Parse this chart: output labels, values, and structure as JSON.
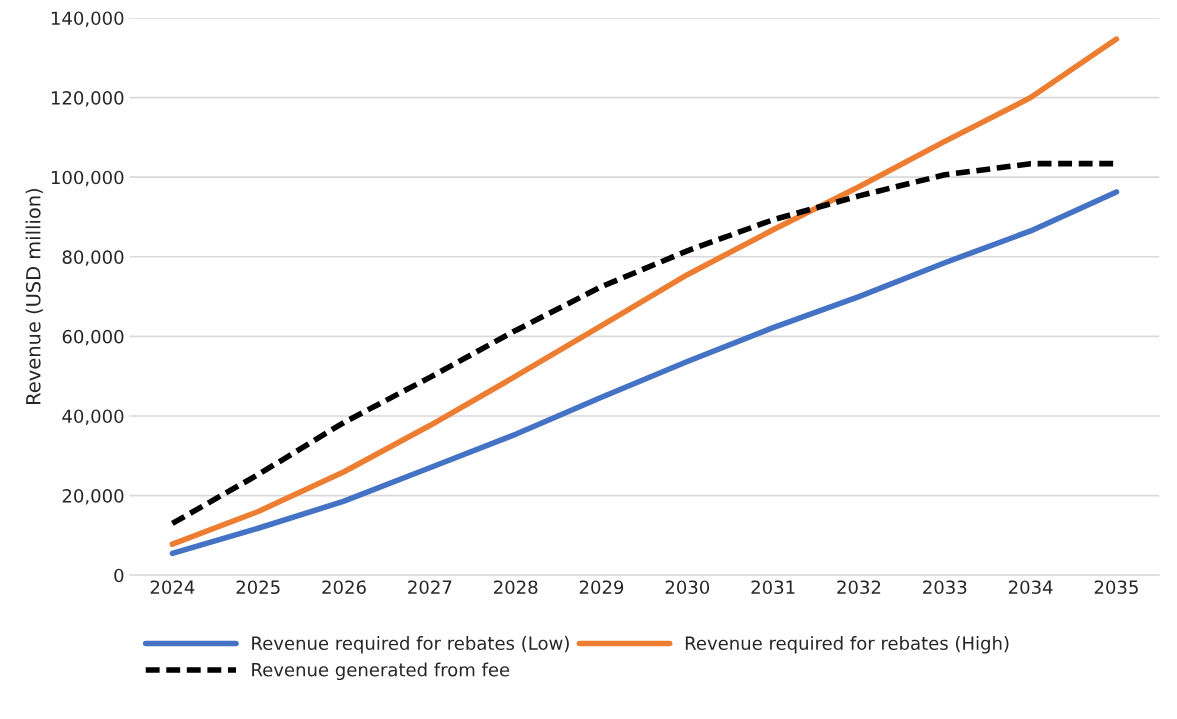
{
  "chart_data": {
    "type": "line",
    "ylabel": "Revenue (USD million)",
    "categories": [
      "2024",
      "2025",
      "2026",
      "2027",
      "2028",
      "2029",
      "2030",
      "2031",
      "2032",
      "2033",
      "2034",
      "2035"
    ],
    "series": [
      {
        "name": "Revenue required for rebates (Low)",
        "color": "#4472c4",
        "line_style": "solid",
        "values": [
          5500,
          11800,
          18600,
          27000,
          35400,
          44700,
          53700,
          62200,
          70000,
          78500,
          86500,
          96300
        ]
      },
      {
        "name": "Revenue required for rebates (High)",
        "color": "#ed7d31",
        "line_style": "solid",
        "values": [
          7800,
          16000,
          26000,
          37600,
          50000,
          62700,
          75500,
          86800,
          97600,
          109000,
          120000,
          134700
        ]
      },
      {
        "name": "Revenue generated from fee",
        "color": "#000000",
        "line_style": "dashed",
        "values": [
          13000,
          25300,
          38400,
          49700,
          61500,
          72500,
          81500,
          89300,
          95300,
          100600,
          103400,
          103400
        ]
      }
    ],
    "ylim": [
      0,
      140000
    ],
    "yticks": [
      0,
      {
        "value": 20000,
        "label": "20,000"
      },
      {
        "value": 40000,
        "label": "40,000"
      },
      {
        "value": 60000,
        "label": "60,000"
      },
      {
        "value": 80000,
        "label": "80,000"
      },
      {
        "value": 100000,
        "label": "100,000"
      },
      {
        "value": 120000,
        "label": "120,000"
      },
      {
        "value": 140000,
        "label": "140,000"
      }
    ],
    "grid": "y",
    "legend": "bottom"
  }
}
